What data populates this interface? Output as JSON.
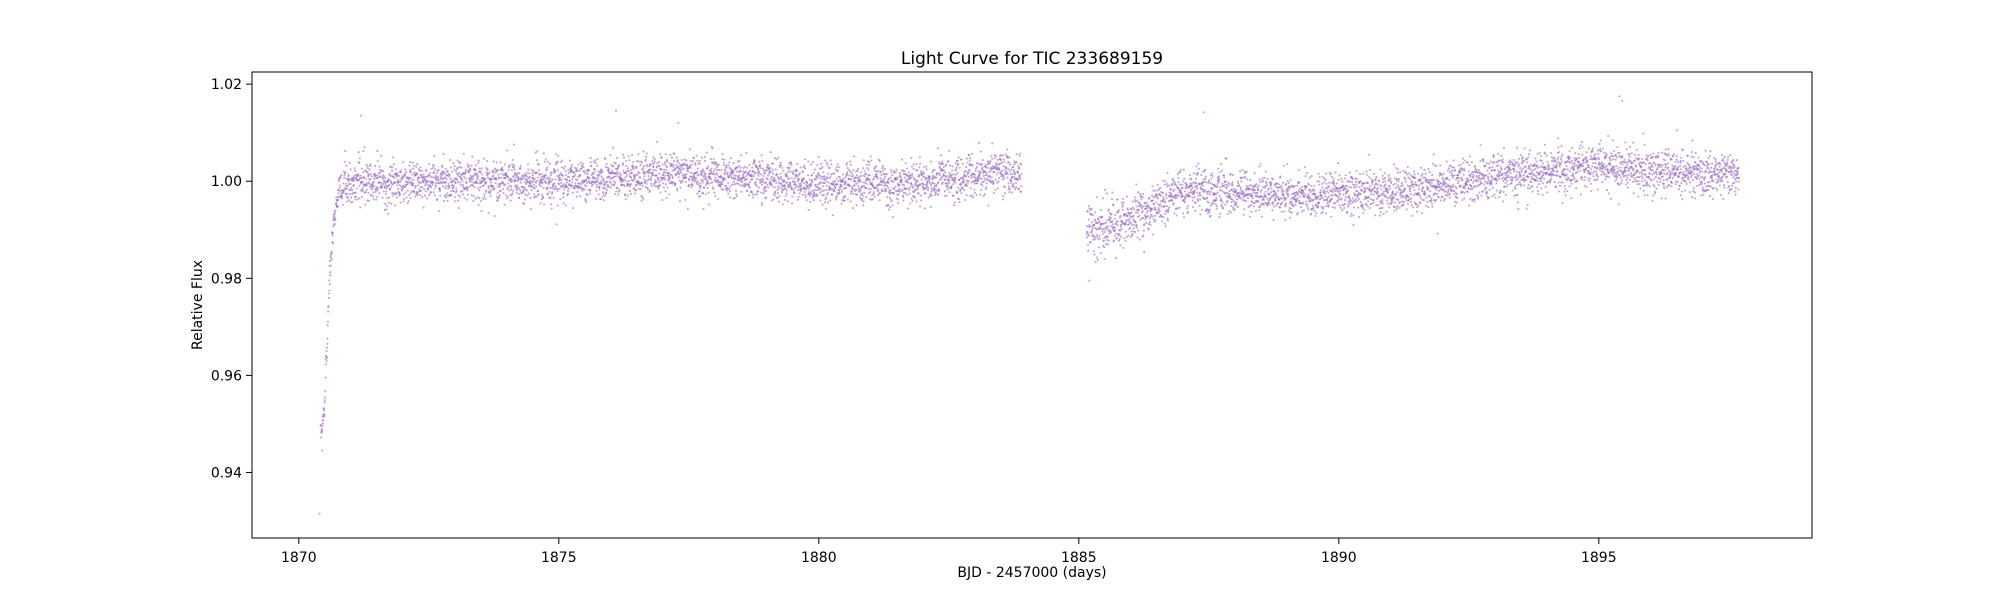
{
  "chart_data": {
    "type": "scatter",
    "title": "Light Curve for TIC 233689159",
    "xlabel": "BJD - 2457000 (days)",
    "ylabel": "Relative Flux",
    "xlim": [
      1869.1,
      1899.1
    ],
    "ylim": [
      0.9265,
      1.0225
    ],
    "xticks": [
      1870,
      1875,
      1880,
      1885,
      1890,
      1895
    ],
    "xtick_labels": [
      "1870",
      "1875",
      "1880",
      "1885",
      "1890",
      "1895"
    ],
    "yticks": [
      0.94,
      0.96,
      0.98,
      1.0,
      1.02
    ],
    "ytick_labels": [
      "0.94",
      "0.96",
      "0.98",
      "1.00",
      "1.02"
    ],
    "grid": false,
    "legend": "none",
    "marker_color": "#9467bd",
    "segments": [
      {
        "x_range": [
          1870.42,
          1883.9
        ],
        "trend": [
          [
            1870.42,
            0.947
          ],
          [
            1870.5,
            0.955
          ],
          [
            1870.55,
            0.968
          ],
          [
            1870.6,
            0.982
          ],
          [
            1870.68,
            0.993
          ],
          [
            1870.8,
            0.999
          ],
          [
            1871.2,
            1.0
          ],
          [
            1873.0,
            1.0
          ],
          [
            1875.0,
            1.0
          ],
          [
            1877.0,
            1.0015
          ],
          [
            1878.5,
            1.001
          ],
          [
            1880.0,
            0.9995
          ],
          [
            1881.5,
            0.9995
          ],
          [
            1882.8,
            1.0005
          ],
          [
            1883.5,
            1.002
          ],
          [
            1883.9,
            1.0015
          ]
        ]
      },
      {
        "x_range": [
          1885.15,
          1897.7
        ],
        "trend": [
          [
            1885.15,
            0.989
          ],
          [
            1885.5,
            0.991
          ],
          [
            1886.0,
            0.9925
          ],
          [
            1886.5,
            0.995
          ],
          [
            1887.0,
            0.998
          ],
          [
            1888.0,
            0.998
          ],
          [
            1889.0,
            0.997
          ],
          [
            1890.0,
            0.9975
          ],
          [
            1891.0,
            0.998
          ],
          [
            1892.0,
            0.999
          ],
          [
            1893.0,
            1.001
          ],
          [
            1894.0,
            1.002
          ],
          [
            1895.0,
            1.0035
          ],
          [
            1896.0,
            1.002
          ],
          [
            1897.0,
            1.0015
          ],
          [
            1897.7,
            1.0015
          ]
        ]
      }
    ],
    "outliers": [
      [
        1870.4,
        0.9315
      ],
      [
        1870.45,
        0.9445
      ],
      [
        1871.2,
        1.0135
      ],
      [
        1876.1,
        1.0145
      ],
      [
        1877.3,
        1.012
      ],
      [
        1887.4,
        1.0142
      ],
      [
        1895.4,
        1.0175
      ],
      [
        1895.45,
        1.0165
      ],
      [
        1885.2,
        0.9795
      ],
      [
        1891.9,
        0.9892
      ],
      [
        1896.5,
        1.0105
      ]
    ]
  }
}
